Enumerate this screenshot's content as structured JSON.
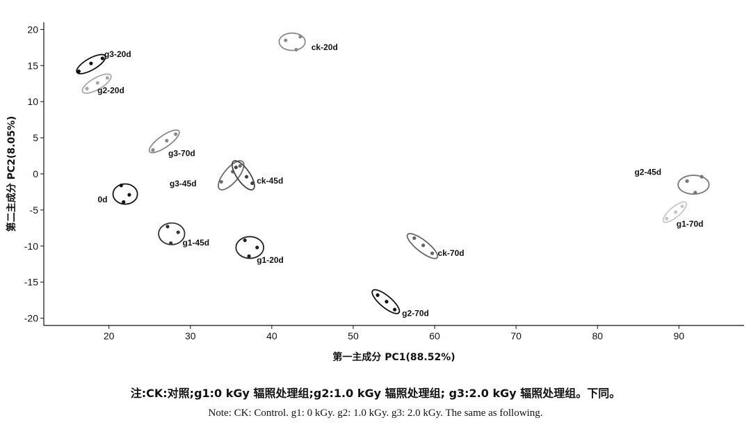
{
  "chart_data": {
    "type": "scatter",
    "xlabel": "第一主成分 PC1(88.52%)",
    "ylabel": "第二主成分 PC2(8.05%)",
    "xlim": [
      12,
      98
    ],
    "ylim": [
      -21,
      21
    ],
    "xticks": [
      20,
      30,
      40,
      50,
      60,
      70,
      80,
      90
    ],
    "yticks": [
      20,
      15,
      10,
      5,
      0,
      -5,
      -10,
      -15,
      -20
    ],
    "grid": false,
    "groups": [
      {
        "name": "g3-20d",
        "center": [
          17.8,
          15.2
        ],
        "rx": 2.0,
        "ry": 0.8,
        "angle": 30,
        "color": "#111111",
        "points": [
          [
            16.3,
            14.2
          ],
          [
            17.8,
            15.3
          ],
          [
            19.2,
            16.0
          ]
        ]
      },
      {
        "name": "g2-20d",
        "center": [
          18.5,
          12.5
        ],
        "rx": 2.0,
        "ry": 0.8,
        "angle": 30,
        "color": "#a8a8a8",
        "points": [
          [
            17.3,
            11.8
          ],
          [
            18.6,
            12.6
          ],
          [
            19.8,
            13.3
          ]
        ]
      },
      {
        "name": "ck-20d",
        "center": [
          42.5,
          18.3
        ],
        "rx": 1.6,
        "ry": 1.2,
        "angle": 0,
        "color": "#8a8a8a",
        "points": [
          [
            41.7,
            18.5
          ],
          [
            43.5,
            19.0
          ],
          [
            43.0,
            17.2
          ]
        ]
      },
      {
        "name": "g3-70d",
        "center": [
          26.8,
          4.5
        ],
        "rx": 2.2,
        "ry": 0.8,
        "angle": 35,
        "color": "#8a8a8a",
        "points": [
          [
            25.4,
            3.3
          ],
          [
            27.1,
            4.6
          ],
          [
            28.2,
            5.5
          ]
        ]
      },
      {
        "name": "0d",
        "center": [
          22.0,
          -2.8
        ],
        "rx": 1.5,
        "ry": 1.4,
        "angle": 0,
        "color": "#111111",
        "points": [
          [
            21.5,
            -1.6
          ],
          [
            22.5,
            -2.9
          ],
          [
            21.8,
            -3.9
          ]
        ]
      },
      {
        "name": "g3-45d",
        "center": [
          35.0,
          -0.2
        ],
        "rx": 2.2,
        "ry": 1.0,
        "angle": 50,
        "color": "#6a6a6a",
        "points": [
          [
            33.8,
            -1.1
          ],
          [
            35.2,
            0.3
          ],
          [
            36.1,
            1.1
          ]
        ]
      },
      {
        "name": "ck-45d",
        "center": [
          36.5,
          -0.2
        ],
        "rx": 2.1,
        "ry": 0.9,
        "angle": -55,
        "color": "#444444",
        "points": [
          [
            35.6,
            0.9
          ],
          [
            36.9,
            -0.4
          ],
          [
            37.6,
            -1.3
          ]
        ]
      },
      {
        "name": "g1-45d",
        "center": [
          27.7,
          -8.3
        ],
        "rx": 1.6,
        "ry": 1.5,
        "angle": 0,
        "color": "#333333",
        "points": [
          [
            27.2,
            -7.3
          ],
          [
            28.5,
            -8.1
          ],
          [
            27.6,
            -9.6
          ]
        ]
      },
      {
        "name": "g1-20d",
        "center": [
          37.3,
          -10.2
        ],
        "rx": 1.7,
        "ry": 1.5,
        "angle": 0,
        "color": "#222222",
        "points": [
          [
            36.7,
            -9.2
          ],
          [
            38.2,
            -10.2
          ],
          [
            37.2,
            -11.4
          ]
        ]
      },
      {
        "name": "ck-70d",
        "center": [
          58.5,
          -10.0
        ],
        "rx": 2.3,
        "ry": 0.8,
        "angle": -38,
        "color": "#666666",
        "points": [
          [
            57.5,
            -8.9
          ],
          [
            58.6,
            -9.9
          ],
          [
            59.7,
            -11.0
          ]
        ]
      },
      {
        "name": "g2-70d",
        "center": [
          54.0,
          -17.7
        ],
        "rx": 2.1,
        "ry": 0.8,
        "angle": -40,
        "color": "#111111",
        "points": [
          [
            53.0,
            -16.8
          ],
          [
            54.1,
            -17.7
          ],
          [
            55.1,
            -18.8
          ]
        ]
      },
      {
        "name": "g2-45d",
        "center": [
          91.8,
          -1.5
        ],
        "rx": 1.9,
        "ry": 1.3,
        "angle": 0,
        "color": "#777777",
        "points": [
          [
            91.0,
            -1.0
          ],
          [
            92.8,
            -0.4
          ],
          [
            92.0,
            -2.6
          ]
        ]
      },
      {
        "name": "g1-70d",
        "center": [
          89.5,
          -5.3
        ],
        "rx": 1.8,
        "ry": 0.7,
        "angle": 40,
        "color": "#c8c8c8",
        "points": [
          [
            88.5,
            -6.2
          ],
          [
            89.6,
            -5.3
          ],
          [
            90.4,
            -4.5
          ]
        ]
      }
    ]
  },
  "notes": {
    "cn": "注:CK:对照;g1:0 kGy 辐照处理组;g2:1.0 kGy 辐照处理组; g3:2.0 kGy 辐照处理组。下同。",
    "en": "Note: CK: Control. g1: 0 kGy. g2: 1.0 kGy. g3: 2.0 kGy. The same as following."
  }
}
